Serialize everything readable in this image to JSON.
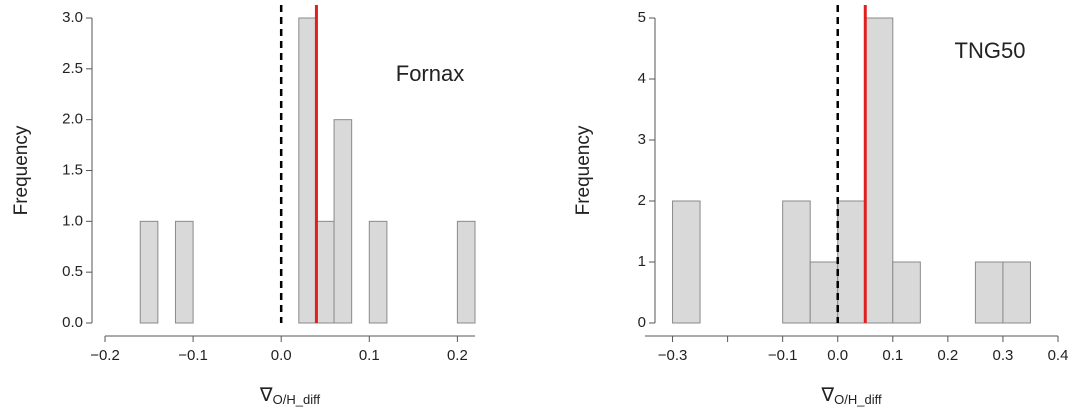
{
  "chart_data": [
    {
      "type": "histogram",
      "annotation": "Fornax",
      "ylabel": "Frequency",
      "xlabel": "∇",
      "xlabel_sub": "O/H_diff",
      "bins": [
        -0.16,
        -0.14,
        -0.12,
        -0.1,
        -0.08,
        -0.06,
        -0.04,
        -0.02,
        0,
        0.02,
        0.04,
        0.06,
        0.08,
        0.1,
        0.12,
        0.14,
        0.16,
        0.18,
        0.2,
        0.22
      ],
      "values": [
        1,
        0,
        1,
        0,
        0,
        0,
        0,
        0,
        0,
        3,
        1,
        2,
        0,
        1,
        0,
        0,
        0,
        0,
        1
      ],
      "color": "#d9d9d9",
      "xlim": [
        -0.2,
        0.22
      ],
      "ylim": [
        0,
        3
      ],
      "xticks": [
        {
          "value": -0.2,
          "label": "−0.2"
        },
        {
          "value": -0.1,
          "label": "−0.1"
        },
        {
          "value": 0,
          "label": "0.0"
        },
        0.1,
        0.2
      ],
      "yticks": [
        {
          "value": 0,
          "label": "0.0"
        },
        0.5,
        {
          "value": 1,
          "label": "1.0"
        },
        1.5,
        {
          "value": 2,
          "label": "2.0"
        },
        2.5,
        {
          "value": 3,
          "label": "3.0"
        }
      ],
      "vlines": [
        {
          "x": 0,
          "color": "#000000",
          "dashed": true
        },
        {
          "x": 0.04,
          "color": "#e02020",
          "dashed": false
        }
      ]
    },
    {
      "type": "histogram",
      "annotation": "TNG50",
      "ylabel": "Frequency",
      "xlabel": "∇",
      "xlabel_sub": "O/H_diff",
      "bins": [
        -0.35,
        -0.3,
        -0.25,
        -0.2,
        -0.15,
        -0.1,
        -0.05,
        0,
        0.05,
        0.1,
        0.15,
        0.2,
        0.25,
        0.3,
        0.35
      ],
      "values": [
        0,
        2,
        0,
        0,
        0,
        2,
        1,
        2,
        5,
        1,
        0,
        0,
        1,
        1
      ],
      "color": "#d9d9d9",
      "xlim": [
        -0.35,
        0.4
      ],
      "ylim": [
        0,
        5
      ],
      "xticks": [
        {
          "value": -0.3,
          "label": "−0.3"
        },
        {
          "value": -0.2,
          "label": null
        },
        {
          "value": -0.1,
          "label": "−0.1"
        },
        {
          "value": 0,
          "label": "0.0"
        },
        0.1,
        0.2,
        0.3,
        0.4
      ],
      "yticks": [
        0,
        1,
        2,
        3,
        4,
        5
      ],
      "vlines": [
        {
          "x": 0,
          "color": "#000000",
          "dashed": true
        },
        {
          "x": 0.05,
          "color": "#e02020",
          "dashed": false
        }
      ]
    }
  ]
}
